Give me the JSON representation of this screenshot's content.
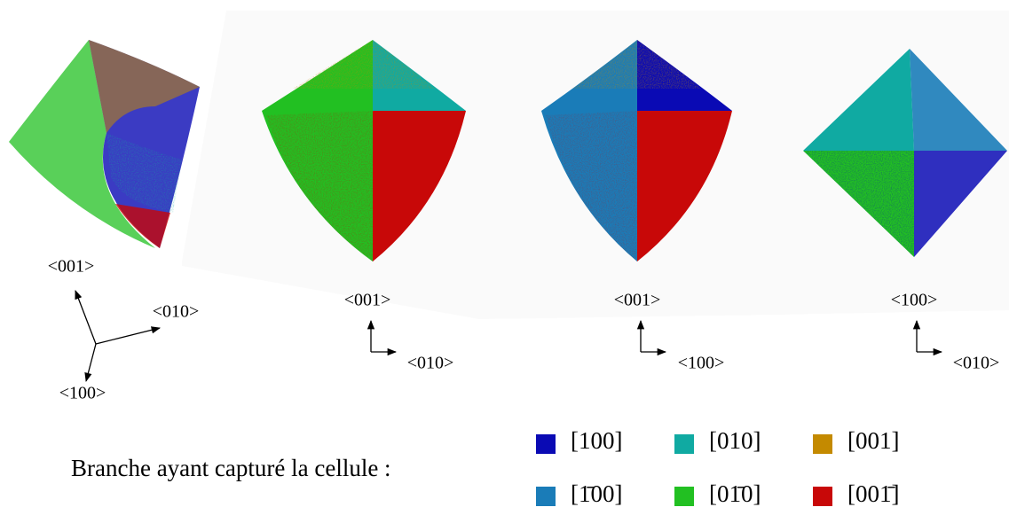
{
  "panels": [
    {
      "axes": [
        "<001>",
        "<010>",
        "<100>"
      ]
    },
    {
      "axes": [
        "<001>",
        "<010>"
      ]
    },
    {
      "axes": [
        "<001>",
        "<100>"
      ]
    },
    {
      "axes": [
        "<100>",
        "<010>"
      ]
    }
  ],
  "legend": {
    "caption": "Branche ayant capturé la cellule :",
    "items": [
      {
        "label": "[100]",
        "color": "#0a0ab4"
      },
      {
        "label": "[010]",
        "color": "#10aaa2"
      },
      {
        "label": "[001]",
        "color": "#c48a00"
      },
      {
        "label": "[1̄00]",
        "color": "#1a7cb8"
      },
      {
        "label": "[01̄0]",
        "color": "#22c022"
      },
      {
        "label": "[001̄]",
        "color": "#c80808"
      }
    ]
  }
}
